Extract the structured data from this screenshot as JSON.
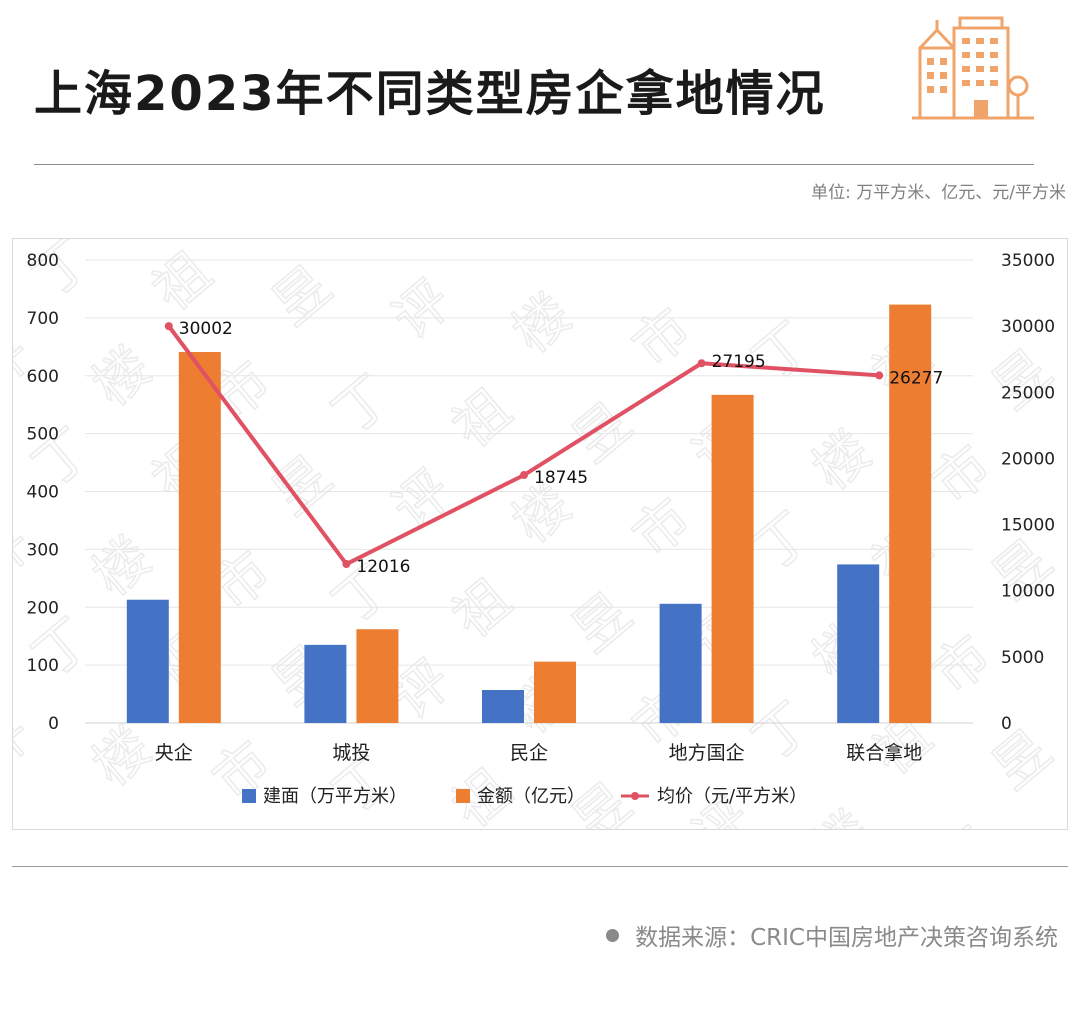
{
  "header": {
    "title": "上海2023年不同类型房企拿地情况",
    "unit_note": "单位: 万平方米、亿元、元/平方米"
  },
  "footer": {
    "source": "数据来源：CRIC中国房地产决策咨询系统"
  },
  "watermark": {
    "text": "丁祖昱评楼市",
    "color": "#e8e8e8"
  },
  "colors": {
    "area_bar": "#4472c4",
    "amount_bar": "#ed7d31",
    "price_line": "#e05263",
    "logo": "#f0a469"
  },
  "chart_data": {
    "type": "bar",
    "categories": [
      "央企",
      "城投",
      "民企",
      "地方国企",
      "联合拿地"
    ],
    "series": [
      {
        "name": "建面（万平方米）",
        "kind": "bar",
        "axis": "left",
        "values": [
          213,
          135,
          57,
          206,
          274
        ]
      },
      {
        "name": "金额（亿元）",
        "kind": "bar",
        "axis": "left",
        "values": [
          641,
          162,
          106,
          567,
          723
        ]
      },
      {
        "name": "均价（元/平方米）",
        "kind": "line",
        "axis": "right",
        "values": [
          30002,
          12016,
          18745,
          27195,
          26277
        ],
        "labels": [
          "30002",
          "12016",
          "18745",
          "27195",
          "26277"
        ]
      }
    ],
    "left_axis": {
      "min": 0,
      "max": 800,
      "ticks": [
        "0",
        "100",
        "200",
        "300",
        "400",
        "500",
        "600",
        "700",
        "800"
      ]
    },
    "right_axis": {
      "min": 0,
      "max": 35000,
      "ticks": [
        "0",
        "5000",
        "10000",
        "15000",
        "20000",
        "25000",
        "30000",
        "35000"
      ]
    },
    "grid": true,
    "legend_position": "bottom"
  }
}
